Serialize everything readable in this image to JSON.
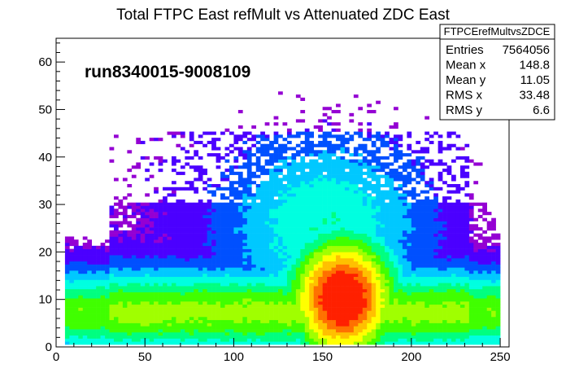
{
  "chart_data": {
    "type": "heatmap",
    "title": "Total FTPC East refMult vs Attenuated  ZDC East",
    "annotation": "run8340015-9008109",
    "xlim": [
      0,
      255
    ],
    "ylim": [
      0,
      65
    ],
    "x_ticks": [
      0,
      50,
      100,
      150,
      200,
      250
    ],
    "y_ticks": [
      0,
      10,
      20,
      30,
      40,
      50,
      60
    ],
    "colormap": [
      "#9400d3",
      "#4b00ff",
      "#0050ff",
      "#00c8ff",
      "#00ffe0",
      "#00ff80",
      "#40ff00",
      "#a0ff00",
      "#ffff00",
      "#ffc000",
      "#ff7000",
      "#ff2000"
    ],
    "density_model": {
      "background_band": {
        "x_range": [
          5,
          250
        ],
        "y_center": 7,
        "y_width": 9
      },
      "peak": {
        "x": 160,
        "y": 10
      },
      "upper_tail_x_range": [
        30,
        230
      ]
    },
    "stats_box": {
      "name": "FTPCErefMultvsZDCE",
      "rows": [
        {
          "label": "Entries",
          "value": "7564056"
        },
        {
          "label": "Mean x",
          "value": "148.8"
        },
        {
          "label": "Mean y",
          "value": "11.05"
        },
        {
          "label": "RMS x",
          "value": "33.48"
        },
        {
          "label": "RMS y",
          "value": "6.6"
        }
      ]
    }
  }
}
